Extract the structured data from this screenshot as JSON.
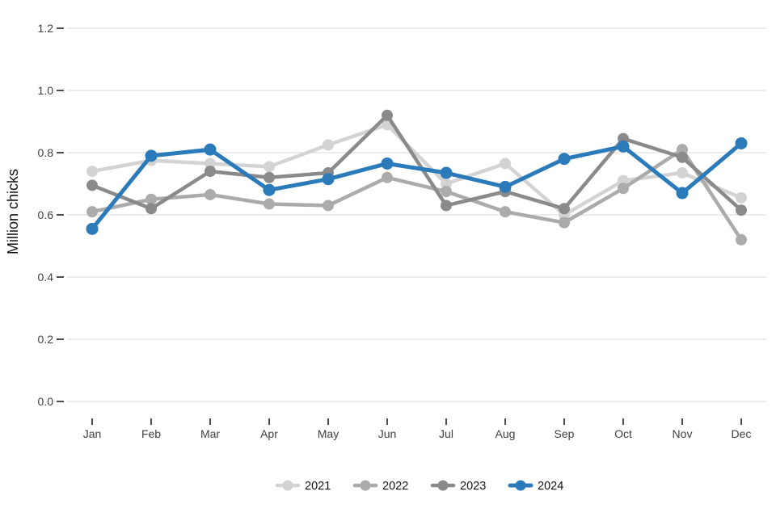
{
  "chart": {
    "ylabel": "Million chicks",
    "y_tick_labels": [
      "0.0",
      "0.2",
      "0.4",
      "0.6",
      "0.8",
      "1.0",
      "1.2"
    ],
    "colors": {
      "grid": "#e6e6e6",
      "tick_mark": "#4d4d4d",
      "tick_text": "#404040",
      "series_2021": "#d3d3d3",
      "series_2022": "#ababab",
      "series_2023": "#8a8a8a",
      "series_2024": "#2b7ab9",
      "background": "#ffffff"
    }
  },
  "chart_data": {
    "type": "line",
    "title": "",
    "xlabel": "",
    "ylabel": "Million chicks",
    "categories": [
      "Jan",
      "Feb",
      "Mar",
      "Apr",
      "May",
      "Jun",
      "Jul",
      "Aug",
      "Sep",
      "Oct",
      "Nov",
      "Dec"
    ],
    "series": [
      {
        "name": "2021",
        "color": "#d3d3d3",
        "values": [
          0.74,
          0.775,
          0.765,
          0.755,
          0.825,
          0.89,
          0.7,
          0.765,
          0.6,
          0.71,
          0.735,
          0.655
        ]
      },
      {
        "name": "2022",
        "color": "#ababab",
        "values": [
          0.61,
          0.65,
          0.665,
          0.635,
          0.63,
          0.72,
          0.675,
          0.61,
          0.575,
          0.685,
          0.81,
          0.52
        ]
      },
      {
        "name": "2023",
        "color": "#8a8a8a",
        "values": [
          0.695,
          0.62,
          0.74,
          0.72,
          0.735,
          0.92,
          0.63,
          0.675,
          0.62,
          0.845,
          0.785,
          0.615
        ]
      },
      {
        "name": "2024",
        "color": "#2b7ab9",
        "values": [
          0.555,
          0.79,
          0.81,
          0.68,
          0.715,
          0.765,
          0.735,
          0.69,
          0.78,
          0.82,
          0.67,
          0.83
        ]
      }
    ],
    "ylim": [
      0.0,
      1.2
    ],
    "y_tick_step": 0.2,
    "grid": "horizontal-major-only",
    "legend_position": "bottom-center",
    "legend_entries": [
      "2021",
      "2022",
      "2023",
      "2024"
    ]
  }
}
